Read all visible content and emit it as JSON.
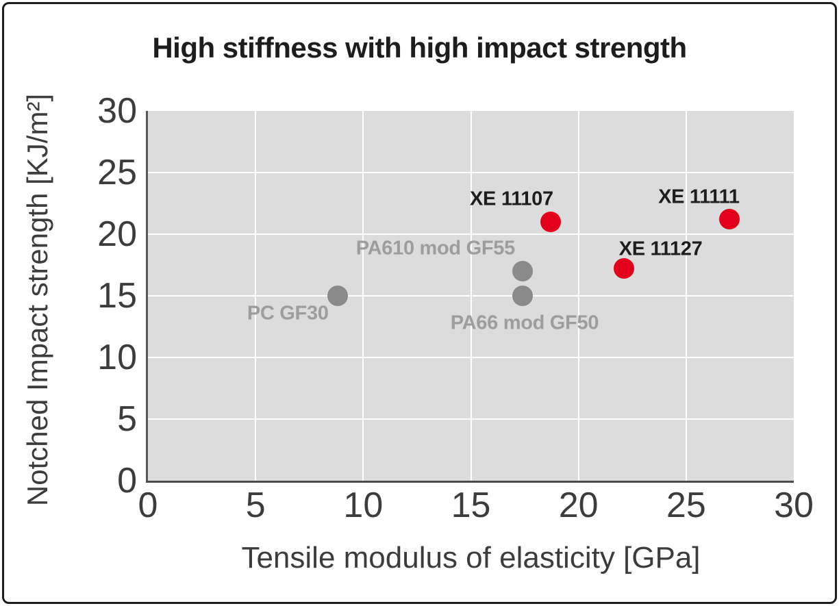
{
  "title": "High stiffness with high impact strength",
  "chart_data": {
    "type": "scatter",
    "title": "High stiffness with high impact strength",
    "xlabel": "Tensile modulus of elasticity [GPa]",
    "ylabel": "Notched Impact strength [KJ/m²]",
    "xlim": [
      0,
      30
    ],
    "ylim": [
      0,
      30
    ],
    "x_ticks": [
      0,
      5,
      10,
      15,
      20,
      25,
      30
    ],
    "y_ticks": [
      0,
      5,
      10,
      15,
      20,
      25,
      30
    ],
    "grid": true,
    "grid_color": "#ffffff",
    "plot_background": "#dcdcdc",
    "legend": false,
    "marker_diameter_px": 30,
    "series": [
      {
        "color_name": "red",
        "color": "#e2001a",
        "label_color": "#1d1d1b",
        "points": [
          {
            "label": "XE 11107",
            "x": 18.7,
            "y": 21.0,
            "label_anchor": "right",
            "label_dx": 4,
            "label_dy": -33
          },
          {
            "label": "XE 11127",
            "x": 22.1,
            "y": 17.2,
            "label_anchor": "left",
            "label_dx": -7,
            "label_dy": -28
          },
          {
            "label": "XE 11111",
            "x": 27.0,
            "y": 21.2,
            "label_anchor": "right",
            "label_dx": 15,
            "label_dy": -32
          }
        ]
      },
      {
        "color_name": "gray",
        "color": "#8a8a8a",
        "label_color": "#9d9d9c",
        "points": [
          {
            "label": "PC GF30",
            "x": 8.8,
            "y": 15.0,
            "label_anchor": "right",
            "label_dx": -13,
            "label_dy": 26
          },
          {
            "label": "PA610 mod GF55",
            "x": 17.4,
            "y": 17.0,
            "label_anchor": "right",
            "label_dx": -11,
            "label_dy": -33
          },
          {
            "label": "PA66 mod GF50",
            "x": 17.4,
            "y": 15.0,
            "label_anchor": "center",
            "label_dx": 3,
            "label_dy": 40
          }
        ]
      }
    ]
  }
}
